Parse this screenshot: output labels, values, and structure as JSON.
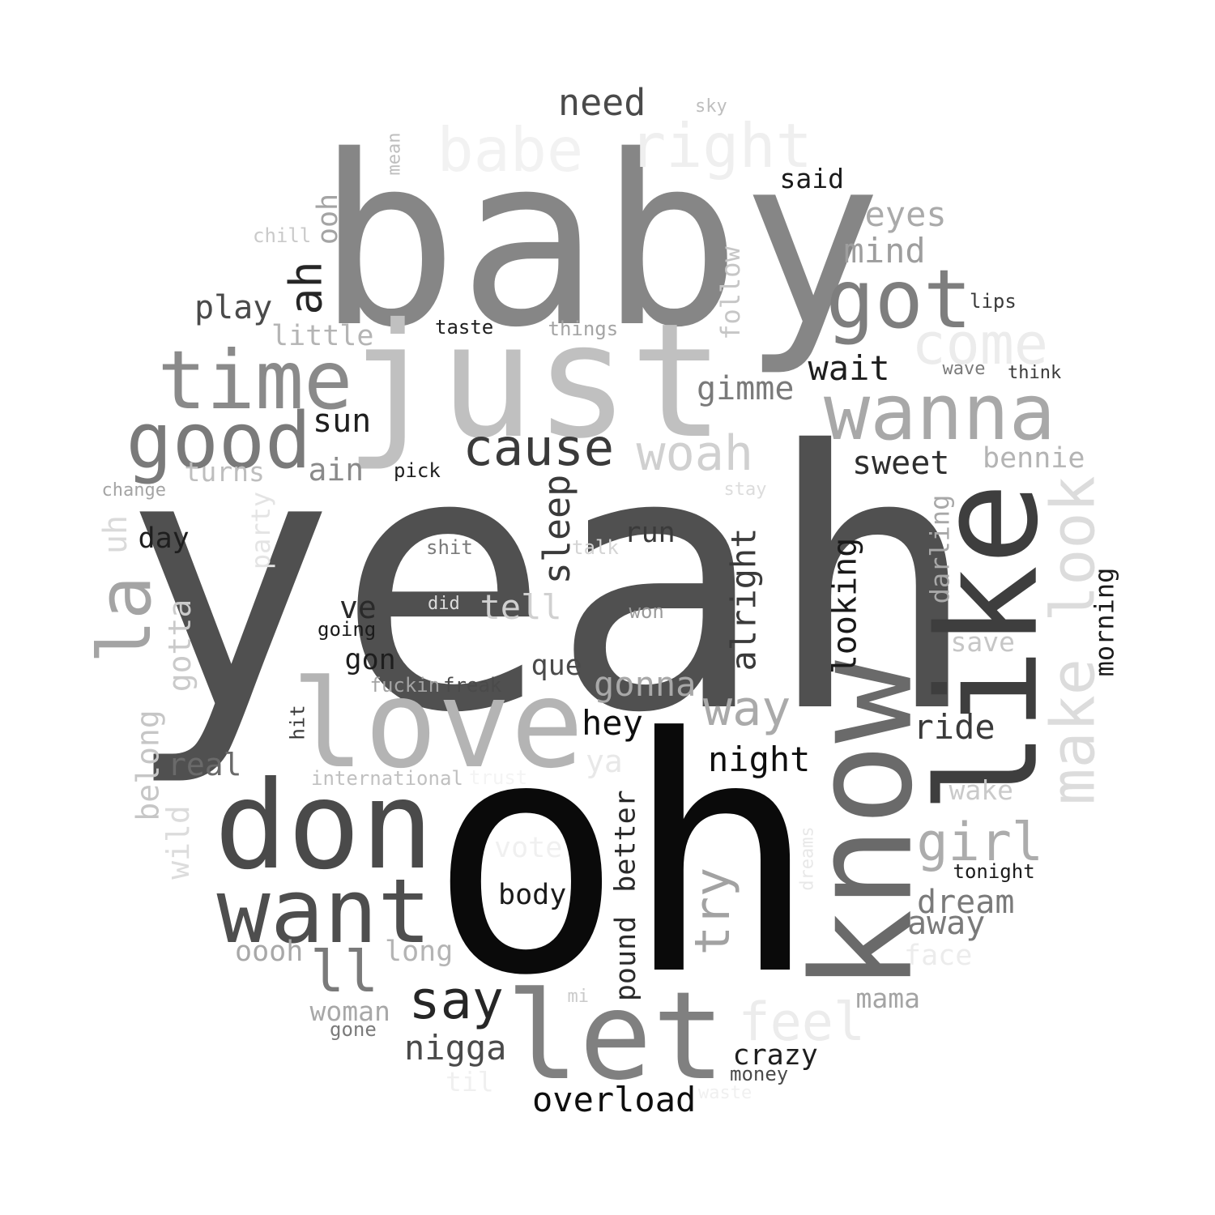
{
  "words": [
    {
      "text": "yeah",
      "color": "#505050"
    },
    {
      "text": "oh",
      "color": "#0a0a0a"
    },
    {
      "text": "baby",
      "color": "#868686"
    },
    {
      "text": "just",
      "color": "#c0c0c0"
    },
    {
      "text": "know",
      "color": "#6a6a6a"
    },
    {
      "text": "like",
      "color": "#3e3e3e"
    },
    {
      "text": "don",
      "color": "#4a4a4a"
    },
    {
      "text": "love",
      "color": "#b4b4b4"
    },
    {
      "text": "let",
      "color": "#808080"
    },
    {
      "text": "want",
      "color": "#4e4e4e"
    },
    {
      "text": "time",
      "color": "#8a8a8a"
    },
    {
      "text": "got",
      "color": "#7e7e7e"
    },
    {
      "text": "wanna",
      "color": "#a8a8a8"
    },
    {
      "text": "good",
      "color": "#7a7a7a"
    },
    {
      "text": "la",
      "color": "#a4a4a4"
    },
    {
      "text": "make look",
      "color": "#dcdcdc"
    },
    {
      "text": "babe",
      "color": "#f2f2f2"
    },
    {
      "text": "right",
      "color": "#efefef"
    },
    {
      "text": "come",
      "color": "#ececec"
    },
    {
      "text": "cause",
      "color": "#3a3a3a"
    },
    {
      "text": "woah",
      "color": "#d0d0d0"
    },
    {
      "text": "say",
      "color": "#262626"
    },
    {
      "text": "ll",
      "color": "#7a7a7a"
    },
    {
      "text": "feel",
      "color": "#ececec"
    },
    {
      "text": "try",
      "color": "#a2a2a2"
    },
    {
      "text": "girl",
      "color": "#acacac"
    },
    {
      "text": "way",
      "color": "#aaaaaa"
    },
    {
      "text": "ah",
      "color": "#262626"
    },
    {
      "text": "need",
      "color": "#4a4a4a"
    },
    {
      "text": "eyes",
      "color": "#aaaaaa"
    },
    {
      "text": "mind",
      "color": "#9e9e9e"
    },
    {
      "text": "play",
      "color": "#4a4a4a"
    },
    {
      "text": "little",
      "color": "#b4b4b4"
    },
    {
      "text": "ooh",
      "color": "#a4a4a4"
    },
    {
      "text": "follow",
      "color": "#c6c6c6"
    },
    {
      "text": "wait",
      "color": "#1e1e1e"
    },
    {
      "text": "gimme",
      "color": "#7a7a7a"
    },
    {
      "text": "sun",
      "color": "#1e1e1e"
    },
    {
      "text": "ain",
      "color": "#8a8a8a"
    },
    {
      "text": "sweet",
      "color": "#2e2e2e"
    },
    {
      "text": "bennie",
      "color": "#b4b4b4"
    },
    {
      "text": "turns",
      "color": "#bebebe"
    },
    {
      "text": "change",
      "color": "#a4a4a4"
    },
    {
      "text": "pick",
      "color": "#1e1e1e"
    },
    {
      "text": "stay",
      "color": "#dcdcdc"
    },
    {
      "text": "sleep",
      "color": "#3a3a3a"
    },
    {
      "text": "uh",
      "color": "#dadada"
    },
    {
      "text": "party",
      "color": "#e4e4e4"
    },
    {
      "text": "day",
      "color": "#1e1e1e"
    },
    {
      "text": "shit",
      "color": "#7a7a7a"
    },
    {
      "text": "talk",
      "color": "#d4d4d4"
    },
    {
      "text": "run",
      "color": "#3a3a3a"
    },
    {
      "text": "alright",
      "color": "#3a3a3a"
    },
    {
      "text": "looking",
      "color": "#1a1a1a"
    },
    {
      "text": "darling",
      "color": "#a8a8a8"
    },
    {
      "text": "morning",
      "color": "#1a1a1a"
    },
    {
      "text": "gotta",
      "color": "#cacaca"
    },
    {
      "text": "ve",
      "color": "#2a2a2a"
    },
    {
      "text": "did",
      "color": "#dcdcdc"
    },
    {
      "text": "tell",
      "color": "#d0d0d0"
    },
    {
      "text": "won",
      "color": "#9a9a9a"
    },
    {
      "text": "going",
      "color": "#1a1a1a"
    },
    {
      "text": "save",
      "color": "#c6c6c6"
    },
    {
      "text": "gon",
      "color": "#1e1e1e"
    },
    {
      "text": "que",
      "color": "#4a4a4a"
    },
    {
      "text": "fuckin",
      "color": "#a4a4a4"
    },
    {
      "text": "freak",
      "color": "#4a4a4a"
    },
    {
      "text": "gonna",
      "color": "#a8a8a8"
    },
    {
      "text": "belong",
      "color": "#c6c6c6"
    },
    {
      "text": "hit",
      "color": "#3a3a3a"
    },
    {
      "text": "hey",
      "color": "#0e0e0e"
    },
    {
      "text": "ride",
      "color": "#3a3a3a"
    },
    {
      "text": "real",
      "color": "#6a6a6a"
    },
    {
      "text": "ya",
      "color": "#e8e8e8"
    },
    {
      "text": "night",
      "color": "#0e0e0e"
    },
    {
      "text": "international",
      "color": "#c0c0c0"
    },
    {
      "text": "trust",
      "color": "#f4f4f4"
    },
    {
      "text": "wake",
      "color": "#cacaca"
    },
    {
      "text": "wild",
      "color": "#dcdcdc"
    },
    {
      "text": "vote",
      "color": "#f0f0f0"
    },
    {
      "text": "better",
      "color": "#2a2a2a"
    },
    {
      "text": "pound",
      "color": "#2a2a2a"
    },
    {
      "text": "dreams",
      "color": "#e8e8e8"
    },
    {
      "text": "tonight",
      "color": "#1a1a1a"
    },
    {
      "text": "body",
      "color": "#1a1a1a"
    },
    {
      "text": "dream",
      "color": "#7a7a7a"
    },
    {
      "text": "away",
      "color": "#7a7a7a"
    },
    {
      "text": "oooh",
      "color": "#a8a8a8"
    },
    {
      "text": "long",
      "color": "#b4b4b4"
    },
    {
      "text": "face",
      "color": "#ececec"
    },
    {
      "text": "woman",
      "color": "#a8a8a8"
    },
    {
      "text": "mi",
      "color": "#cacaca"
    },
    {
      "text": "mama",
      "color": "#a4a4a4"
    },
    {
      "text": "gone",
      "color": "#7a7a7a"
    },
    {
      "text": "nigga",
      "color": "#4a4a4a"
    },
    {
      "text": "crazy",
      "color": "#1e1e1e"
    },
    {
      "text": "money",
      "color": "#4a4a4a"
    },
    {
      "text": "til",
      "color": "#f0f0f0"
    },
    {
      "text": "waste",
      "color": "#f0f0f0"
    },
    {
      "text": "overload",
      "color": "#0e0e0e"
    },
    {
      "text": "said",
      "color": "#1a1a1a"
    },
    {
      "text": "sky",
      "color": "#bebebe"
    },
    {
      "text": "mean",
      "color": "#bebebe"
    },
    {
      "text": "chill",
      "color": "#cacaca"
    },
    {
      "text": "lips",
      "color": "#3a3a3a"
    },
    {
      "text": "taste",
      "color": "#1e1e1e"
    },
    {
      "text": "things",
      "color": "#a4a4a4"
    },
    {
      "text": "wave",
      "color": "#7a7a7a"
    },
    {
      "text": "think",
      "color": "#3a3a3a"
    }
  ]
}
